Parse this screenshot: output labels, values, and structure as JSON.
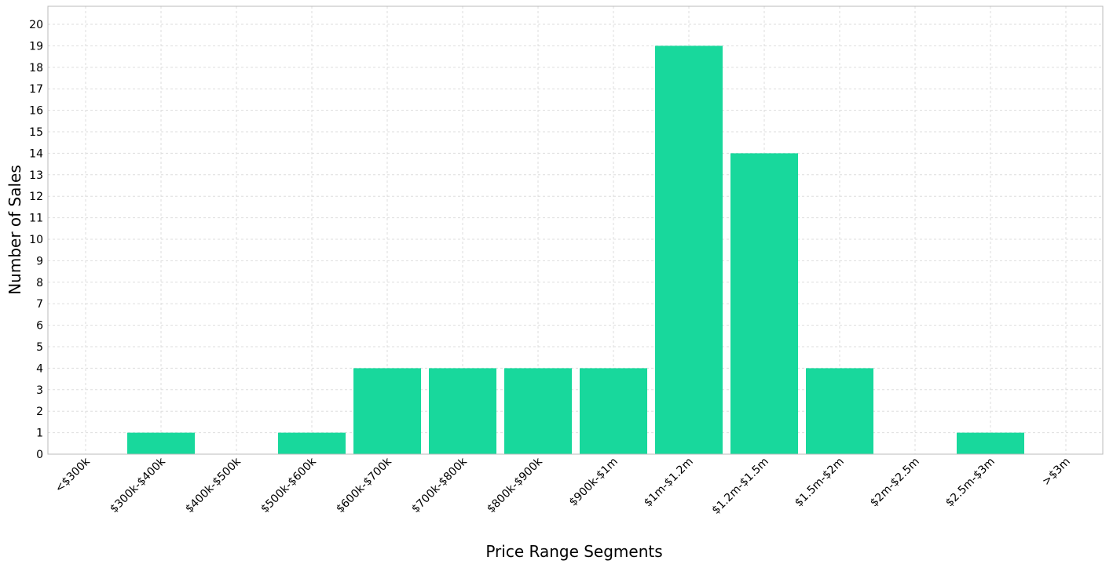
{
  "chart_data": {
    "type": "bar",
    "title": "",
    "xlabel": "Price Range Segments",
    "ylabel": "Number of Sales",
    "categories": [
      "<$300k",
      "$300k-$400k",
      "$400k-$500k",
      "$500k-$600k",
      "$600k-$700k",
      "$700k-$800k",
      "$800k-$900k",
      "$900k-$1m",
      "$1m-$1.2m",
      "$1.2m-$1.5m",
      "$1.5m-$2m",
      "$2m-$2.5m",
      "$2.5m-$3m",
      ">$3m"
    ],
    "values": [
      0,
      1,
      0,
      1,
      4,
      4,
      4,
      4,
      19,
      14,
      4,
      0,
      1,
      0
    ],
    "ylim": [
      0,
      20
    ],
    "yticks": [
      0,
      1,
      2,
      3,
      4,
      5,
      6,
      7,
      8,
      9,
      10,
      11,
      12,
      13,
      14,
      15,
      16,
      17,
      18,
      19,
      20
    ],
    "grid": true,
    "legend": "none",
    "bar_color": "#18d89c",
    "grid_color": "#dddddd",
    "axis_color": "#bbbbbb"
  }
}
